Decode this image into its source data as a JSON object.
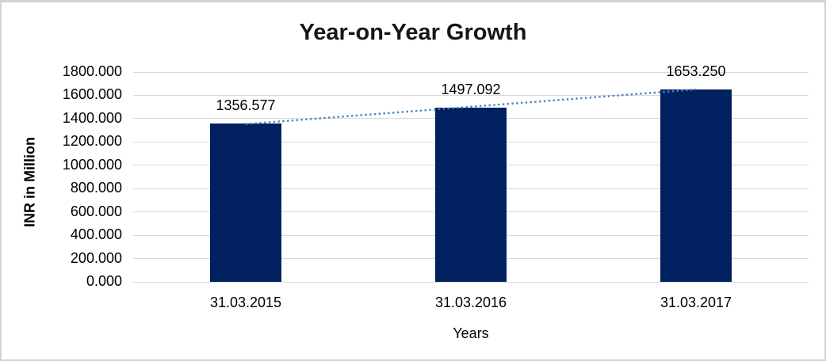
{
  "chart_data": {
    "type": "bar",
    "title": "Year-on-Year Growth",
    "categories": [
      "31.03.2015",
      "31.03.2016",
      "31.03.2017"
    ],
    "values": [
      1356.577,
      1497.092,
      1653.25
    ],
    "data_labels": [
      "1356.577",
      "1497.092",
      "1653.250"
    ],
    "xlabel": "Years",
    "ylabel": "INR in Million",
    "ylim": [
      0,
      1800
    ],
    "ytick_step": 200,
    "ytick_decimals": 3,
    "grid": true,
    "legend": false,
    "trendline": {
      "type": "linear",
      "style": "dotted"
    },
    "colors": {
      "bar": "#002060",
      "trendline": "#4f81bd",
      "gridline": "#d9d9d9",
      "text": "#000000",
      "border": "#d2d2d2"
    }
  }
}
